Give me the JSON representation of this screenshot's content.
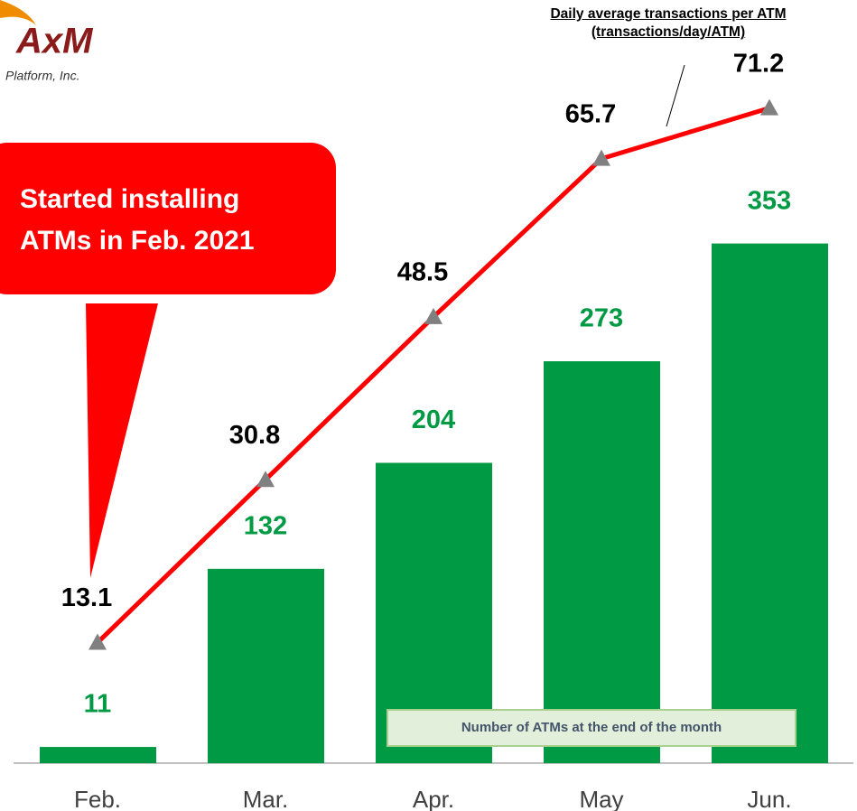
{
  "logo": {
    "name": "AxM",
    "subtitle": "Platform, Inc."
  },
  "callout": [
    "Started installing",
    "ATMs in Feb. 2021"
  ],
  "chart_data": {
    "type": "bar",
    "categories": [
      "Feb.",
      "Mar.",
      "Apr.",
      "May",
      "Jun."
    ],
    "series": [
      {
        "name": "Number of ATMs at the end of the month",
        "type": "bar",
        "color": "#009a44",
        "values": [
          11,
          132,
          204,
          273,
          353
        ]
      },
      {
        "name": "Daily average transactions per ATM (transactions/day/ATM)",
        "type": "line",
        "axis": "y2",
        "color": "#ff0000",
        "marker_color": "#808080",
        "values": [
          13.1,
          30.8,
          48.5,
          65.7,
          71.2
        ]
      }
    ],
    "ylim": [
      0,
      500
    ],
    "y2lim": [
      0,
      80
    ],
    "grid": false
  }
}
